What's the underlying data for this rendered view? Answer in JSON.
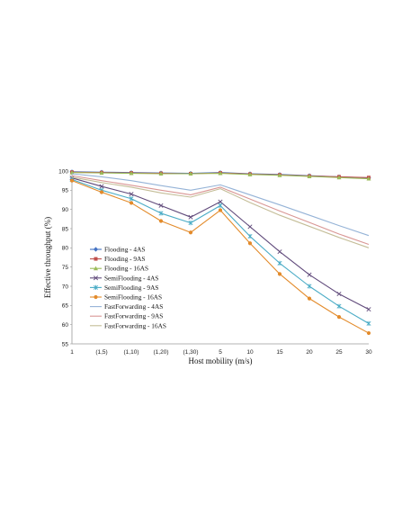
{
  "chart_data": {
    "type": "line",
    "xlabel": "Host mobility (m/s)",
    "ylabel": "Effective throughput (%)",
    "ylim": [
      55,
      100
    ],
    "yticks": [
      55,
      60,
      65,
      70,
      75,
      80,
      85,
      90,
      95,
      100
    ],
    "categories": [
      "1",
      "(1,5)",
      "(1,10)",
      "(1,20)",
      "(1,30)",
      "5",
      "10",
      "15",
      "20",
      "25",
      "30"
    ],
    "grid": false,
    "legend_position": "lower-left",
    "series": [
      {
        "name": "Flooding - 4AS",
        "color": "#4472C4",
        "marker": "diamond",
        "values": [
          99.8,
          99.7,
          99.6,
          99.5,
          99.4,
          99.6,
          99.3,
          99.1,
          98.8,
          98.5,
          98.2
        ]
      },
      {
        "name": "Flooding - 9AS",
        "color": "#C0504D",
        "marker": "square",
        "values": [
          99.7,
          99.6,
          99.5,
          99.4,
          99.3,
          99.5,
          99.2,
          99.0,
          98.7,
          98.5,
          98.3
        ]
      },
      {
        "name": "Flooding - 16AS",
        "color": "#9BBB59",
        "marker": "triangle",
        "values": [
          99.6,
          99.5,
          99.4,
          99.3,
          99.3,
          99.4,
          99.1,
          98.9,
          98.6,
          98.3,
          98.0
        ]
      },
      {
        "name": "SemiFlooding - 4AS",
        "color": "#604A7B",
        "marker": "x",
        "values": [
          98.2,
          96.0,
          94.0,
          91.0,
          88.0,
          92.0,
          85.5,
          79.0,
          73.0,
          68.0,
          64.0
        ]
      },
      {
        "name": "SemiFlooding - 9AS",
        "color": "#4BACC6",
        "marker": "star",
        "values": [
          97.8,
          95.0,
          92.8,
          89.0,
          86.5,
          91.0,
          83.0,
          76.0,
          70.0,
          64.8,
          60.3
        ]
      },
      {
        "name": "SemiFlooding - 16AS",
        "color": "#E38B2B",
        "marker": "circle",
        "values": [
          97.5,
          94.5,
          91.7,
          87.0,
          84.0,
          89.8,
          81.2,
          73.2,
          66.8,
          62.0,
          57.8
        ]
      },
      {
        "name": "FastForwarding - 4AS",
        "color": "#95B3D7",
        "marker": "none",
        "values": [
          99.3,
          98.5,
          97.5,
          96.2,
          95.0,
          96.4,
          93.8,
          91.2,
          88.5,
          85.8,
          83.2
        ]
      },
      {
        "name": "FastForwarding - 9AS",
        "color": "#D99694",
        "marker": "none",
        "values": [
          98.8,
          97.5,
          96.3,
          95.0,
          93.8,
          95.8,
          92.7,
          89.6,
          86.6,
          83.6,
          80.9
        ]
      },
      {
        "name": "FastForwarding - 16AS",
        "color": "#C4BD97",
        "marker": "none",
        "values": [
          98.4,
          97.0,
          95.8,
          94.3,
          93.2,
          95.4,
          91.8,
          88.5,
          85.6,
          82.7,
          80.0
        ]
      }
    ]
  }
}
